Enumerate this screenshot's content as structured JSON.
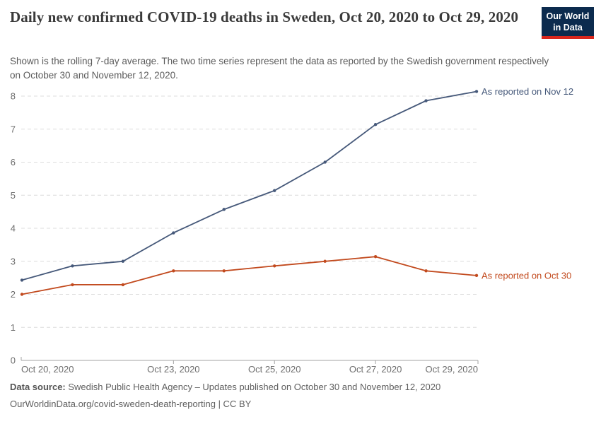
{
  "logo": {
    "line1": "Our World",
    "line2": "in Data"
  },
  "header": {
    "title": "Daily new confirmed COVID-19 deaths in Sweden, Oct 20, 2020 to Oct 29, 2020",
    "subtitle": "Shown is the rolling 7-day average. The two time series represent the data as reported by the Swedish government respectively on October 30 and November 12, 2020."
  },
  "chart_data": {
    "type": "line",
    "title": "Daily new confirmed COVID-19 deaths in Sweden",
    "x": [
      "Oct 20, 2020",
      "Oct 21, 2020",
      "Oct 22, 2020",
      "Oct 23, 2020",
      "Oct 24, 2020",
      "Oct 25, 2020",
      "Oct 26, 2020",
      "Oct 27, 2020",
      "Oct 28, 2020",
      "Oct 29, 2020"
    ],
    "series": [
      {
        "name": "As reported on Nov 12",
        "color": "#46597a",
        "values": [
          2.43,
          2.86,
          3.0,
          3.86,
          4.57,
          5.14,
          6.0,
          7.14,
          7.86,
          8.14
        ]
      },
      {
        "name": "As reported on Oct 30",
        "color": "#c24a1e",
        "values": [
          2.0,
          2.29,
          2.29,
          2.71,
          2.71,
          2.86,
          3.0,
          3.14,
          2.71,
          2.57
        ]
      }
    ],
    "y_ticks": [
      0,
      1,
      2,
      3,
      4,
      5,
      6,
      7,
      8
    ],
    "ylim": [
      0,
      8.56
    ],
    "x_tick_labels": [
      {
        "index": 0,
        "label": "Oct 20, 2020",
        "align": "start"
      },
      {
        "index": 3,
        "label": "Oct 23, 2020",
        "align": "middle"
      },
      {
        "index": 5,
        "label": "Oct 25, 2020",
        "align": "middle"
      },
      {
        "index": 7,
        "label": "Oct 27, 2020",
        "align": "middle"
      },
      {
        "index": 9,
        "label": "Oct 29, 2020",
        "align": "end"
      }
    ],
    "grid": "horizontal-dashed",
    "legend_position": "end-of-line-labels"
  },
  "footer": {
    "source_label": "Data source:",
    "source_text": " Swedish Public Health Agency – Updates published on October 30 and November 12, 2020",
    "link_line": "OurWorldinData.org/covid-sweden-death-reporting | CC BY"
  },
  "colors": {
    "logo_navy": "#0c2b4e",
    "logo_red": "#d9261c",
    "series_nov12": "#46597a",
    "series_oct30": "#c24a1e",
    "grid": "#dcdcdc",
    "axis": "#a3a3a3",
    "axis_text": "#6d6d6d"
  }
}
